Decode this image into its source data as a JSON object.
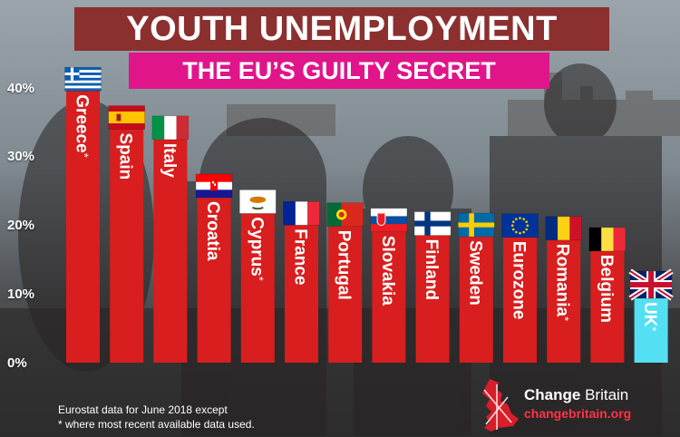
{
  "title": "YOUTH UNEMPLOYMENT",
  "subtitle": "THE EU’S GUILTY SECRET",
  "footnote": {
    "line1": "Eurostat data for June 2018 except",
    "line2": "* where most recent available data used."
  },
  "brand": {
    "name_bold": "Change",
    "name_regular": " Britain",
    "url": "changebritain.org"
  },
  "colors": {
    "bar": "#d81e1e",
    "uk_bar": "#53e0f3",
    "title_bg": "#8c2f2f",
    "subtitle_bg": "#e0158a",
    "brand_url": "#ff3344"
  },
  "chart_data": {
    "type": "bar",
    "title": "YOUTH UNEMPLOYMENT",
    "subtitle": "THE EU’S GUILTY SECRET",
    "xlabel": "",
    "ylabel": "",
    "ylim": [
      0,
      40
    ],
    "yticks": [
      "0%",
      "10%",
      "20%",
      "30%",
      "40%"
    ],
    "ytick_values": [
      0,
      10,
      20,
      30,
      40
    ],
    "grid": false,
    "categories": [
      "Greece*",
      "Spain",
      "Italy",
      "Croatia",
      "Cyprus*",
      "France",
      "Portugal",
      "Slovakia",
      "Finland",
      "Sweden",
      "Eurozone",
      "Romania*",
      "Belgium",
      "UK*"
    ],
    "values": [
      39.7,
      34.1,
      32.6,
      24.1,
      21.8,
      20.1,
      19.9,
      19.1,
      18.6,
      18.4,
      18.3,
      17.9,
      16.3,
      9.4
    ],
    "flags": [
      "greece-flag",
      "spain-flag",
      "italy-flag",
      "croatia-flag",
      "cyprus-flag",
      "france-flag",
      "portugal-flag",
      "slovakia-flag",
      "finland-flag",
      "sweden-flag",
      "eu-flag",
      "romania-flag",
      "belgium-flag",
      "uk-flag"
    ],
    "highlight": "UK*"
  }
}
